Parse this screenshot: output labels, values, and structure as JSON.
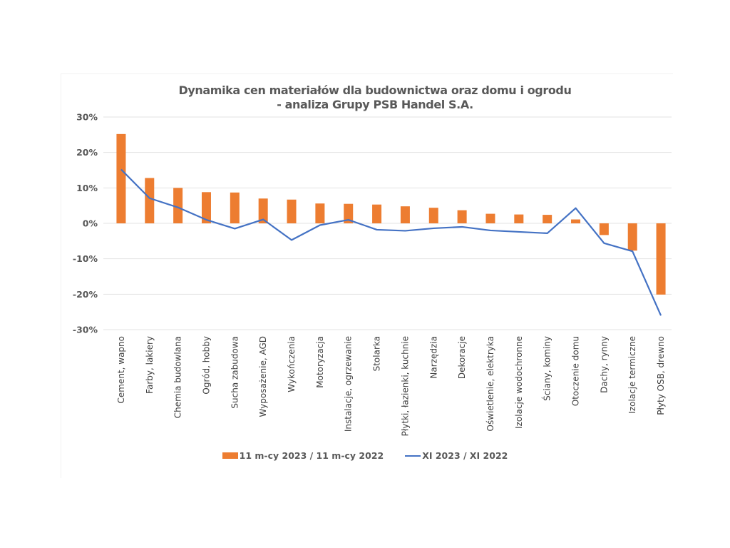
{
  "chart_data": {
    "type": "bar",
    "title": "Dynamika cen materiałów dla budownictwa oraz domu i ogrodu",
    "subtitle": "- analiza Grupy PSB Handel S.A.",
    "xlabel": "",
    "ylabel": "",
    "ylim": [
      -30,
      30
    ],
    "yticks": [
      30,
      20,
      10,
      0,
      -10,
      -20,
      -30
    ],
    "ytick_labels": [
      "30%",
      "20%",
      "10%",
      "0%",
      "-10%",
      "-20%",
      "-30%"
    ],
    "grid": true,
    "legend_position": "bottom",
    "categories": [
      "Cement, wapno",
      "Farby, lakiery",
      "Chemia budowlana",
      "Ogród, hobby",
      "Sucha zabudowa",
      "Wyposażenie, AGD",
      "Wykończenia",
      "Motoryzacja",
      "Instalacje, ogrzewanie",
      "Stolarka",
      "Płytki, łazienki, kuchnie",
      "Narzędzia",
      "Dekoracje",
      "Oświetlenie, elektryka",
      "Izolacje wodochronne",
      "Ściany, kominy",
      "Otoczenie domu",
      "Dachy, rynny",
      "Izolacje termiczne",
      "Płyty OSB, drewno"
    ],
    "series": [
      {
        "name": "11 m-cy 2023 / 11 m-cy 2022",
        "type": "bar",
        "color": "#ED7D31",
        "values": [
          25.2,
          12.8,
          10.0,
          8.8,
          8.7,
          7.0,
          6.7,
          5.6,
          5.5,
          5.3,
          4.8,
          4.4,
          3.7,
          2.7,
          2.5,
          2.4,
          1.1,
          -3.3,
          -7.7,
          -20.1
        ]
      },
      {
        "name": "XI 2023 / XI 2022",
        "type": "line",
        "color": "#4472C4",
        "values": [
          15.2,
          7.1,
          4.5,
          1.0,
          -1.5,
          1.1,
          -4.7,
          -0.5,
          1.0,
          -1.8,
          -2.1,
          -1.4,
          -1.0,
          -2.0,
          -2.4,
          -2.8,
          4.3,
          -5.6,
          -7.9,
          -26.0
        ]
      }
    ]
  }
}
